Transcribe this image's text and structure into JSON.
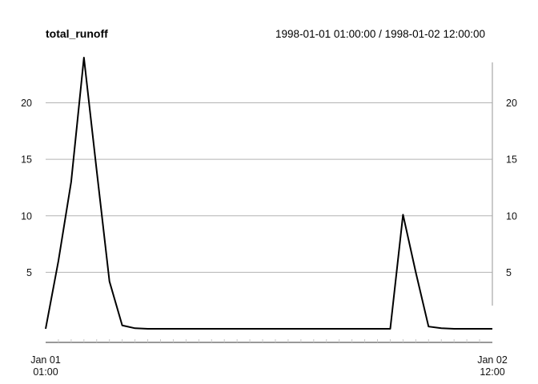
{
  "chart_data": {
    "type": "line",
    "title": "total_runoff",
    "date_range_label": "1998-01-01 01:00:00 / 1998-01-02 12:00:00",
    "x_start": "1998-01-01 01:00",
    "x_end": "1998-01-02 12:00",
    "x_interval": "1 hour",
    "x_tick_labels": [
      {
        "line1": "Jan 01",
        "line2": "01:00"
      },
      {
        "line1": "Jan 02",
        "line2": "12:00"
      }
    ],
    "y_ticks": [
      5,
      10,
      15,
      20
    ],
    "ylim": [
      0,
      24
    ],
    "grid": "horizontal",
    "series": [
      {
        "values": [
          0,
          6,
          13,
          24,
          14,
          4.2,
          0.3,
          0.05,
          0,
          0,
          0,
          0,
          0,
          0,
          0,
          0,
          0,
          0,
          0,
          0,
          0,
          0,
          0,
          0,
          0,
          0,
          0,
          0,
          10.1,
          5,
          0.2,
          0.05,
          0,
          0,
          0,
          0
        ],
        "color": "#000000"
      }
    ]
  }
}
